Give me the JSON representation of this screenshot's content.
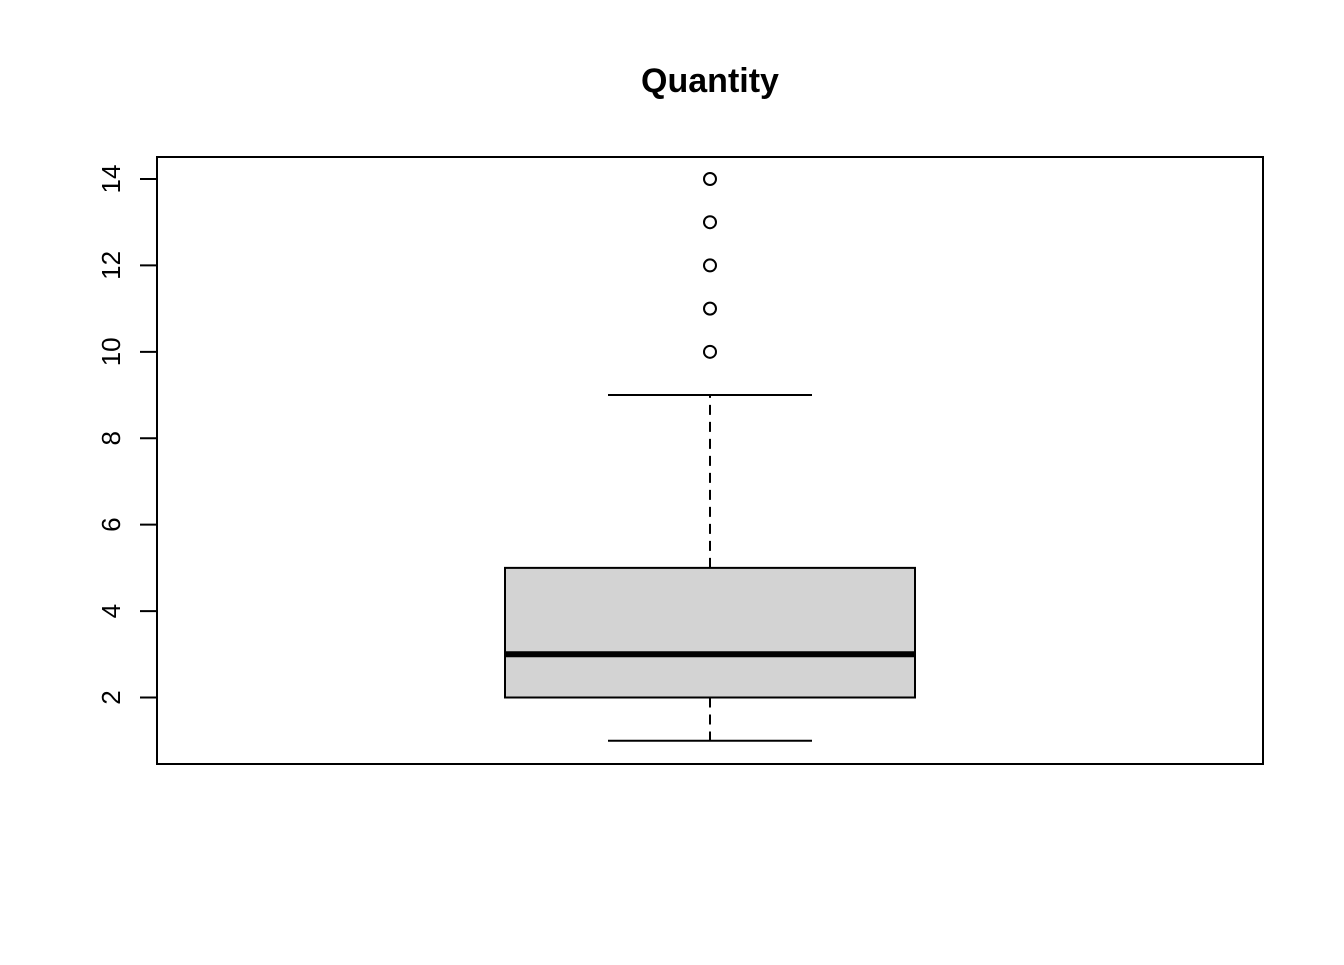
{
  "chart_data": {
    "type": "boxplot",
    "title": "Quantity",
    "xlabel": "",
    "ylabel": "",
    "ylim": [
      0.5,
      14.5
    ],
    "y_ticks": [
      2,
      4,
      6,
      8,
      10,
      12,
      14
    ],
    "grid": false,
    "legend": "none",
    "boxes": [
      {
        "whisker_low": 1,
        "q1": 2,
        "median": 3,
        "q3": 5,
        "whisker_high": 9,
        "outliers": [
          10,
          11,
          12,
          13,
          14
        ]
      }
    ],
    "colors": {
      "box_fill": "#d3d3d3",
      "stroke": "#000000",
      "background": "#ffffff"
    }
  }
}
